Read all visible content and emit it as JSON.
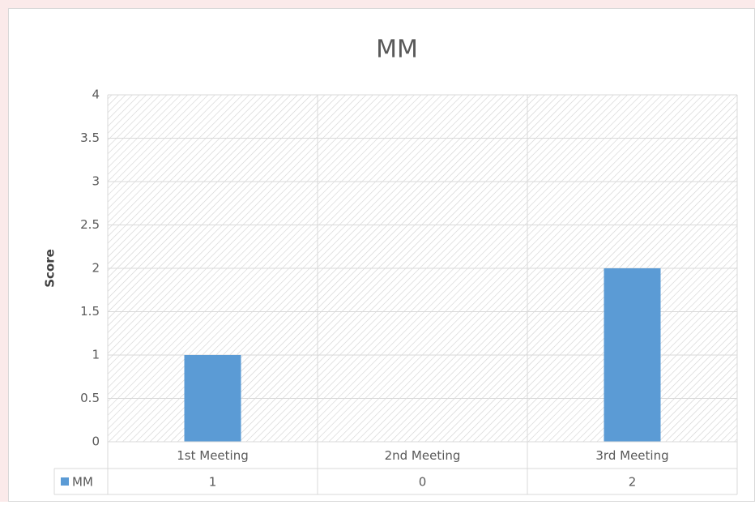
{
  "chart_data": {
    "type": "bar",
    "title": "MM",
    "y_label": "Score",
    "categories": [
      "1st Meeting",
      "2nd Meeting",
      "3rd Meeting"
    ],
    "series": [
      {
        "name": "MM",
        "color": "#5b9bd5",
        "values": [
          1,
          0,
          2
        ]
      }
    ],
    "ylim": [
      0,
      4
    ],
    "yticks": [
      0,
      0.5,
      1,
      1.5,
      2,
      2.5,
      3,
      3.5,
      4
    ],
    "grid": true
  }
}
